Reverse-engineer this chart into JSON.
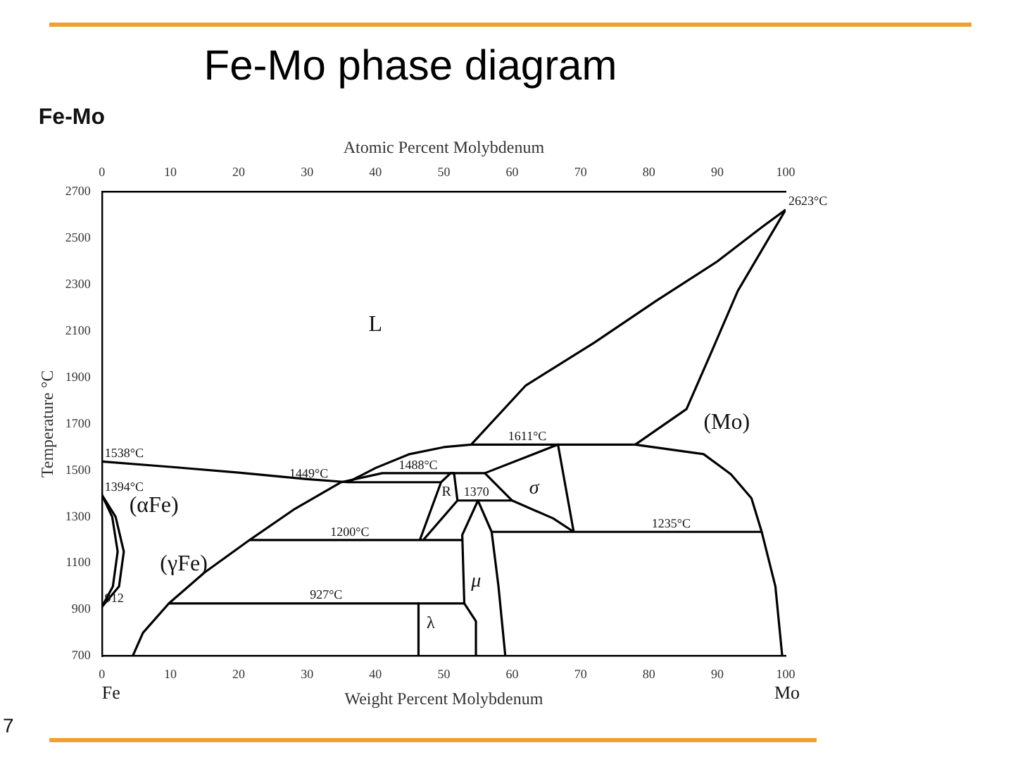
{
  "chart_data": {
    "type": "line",
    "title": "Fe-Mo phase diagram",
    "xlabel": "Weight Percent Molybdenum",
    "x2label": "Atomic Percent Molybdenum",
    "ylabel": "Temperature °C",
    "xlim": [
      0,
      100
    ],
    "xticks": [
      0,
      10,
      20,
      30,
      40,
      50,
      60,
      70,
      80,
      90,
      100
    ],
    "x2lim": [
      0,
      100
    ],
    "x2ticks": [
      0,
      10,
      20,
      30,
      40,
      50,
      60,
      70,
      80,
      90,
      100
    ],
    "ylim": [
      700,
      2700
    ],
    "yticks": [
      700,
      900,
      1100,
      1300,
      1500,
      1700,
      1900,
      2100,
      2300,
      2500,
      2700
    ],
    "grid": false,
    "legend": false,
    "marker": "none",
    "line_style": "solid",
    "series": [
      {
        "color": "#000000",
        "x": [
          0,
          10,
          20,
          30,
          36,
          49.6
        ],
        "values": [
          1538,
          1515,
          1490,
          1462,
          1449,
          1449
        ]
      },
      {
        "color": "#000000",
        "x": [
          4.5,
          6,
          9.8,
          15,
          21.6,
          28,
          35,
          41,
          56,
          60,
          66,
          69
        ],
        "values": [
          700,
          800,
          927,
          1060,
          1200,
          1330,
          1449,
          1488,
          1488,
          1370,
          1293,
          1235
        ]
      },
      {
        "color": "#000000",
        "x": [
          36,
          40,
          45,
          50,
          54,
          62,
          72,
          81,
          90,
          96.5,
          100
        ],
        "values": [
          1449,
          1510,
          1570,
          1600,
          1611,
          1866,
          2050,
          2229,
          2400,
          2547,
          2623
        ]
      },
      {
        "color": "#000000",
        "x": [
          100,
          93,
          89,
          85.5,
          78,
          88,
          92,
          95,
          96.5,
          98.5,
          99.5
        ],
        "values": [
          2623,
          2273,
          2000,
          1764,
          1611,
          1570,
          1483,
          1380,
          1235,
          1000,
          700
        ]
      },
      {
        "color": "#000000",
        "x": [
          54,
          78
        ],
        "values": [
          1611,
          1611
        ]
      },
      {
        "color": "#000000",
        "x": [
          57,
          96.5
        ],
        "values": [
          1235,
          1235
        ]
      },
      {
        "color": "#000000",
        "x": [
          56,
          66.7,
          69
        ],
        "values": [
          1488,
          1611,
          1235
        ]
      },
      {
        "color": "#000000",
        "x": [
          46.5,
          49.6,
          51,
          51.5,
          52,
          47
        ],
        "values": [
          1200,
          1449,
          1488,
          1488,
          1370,
          1200
        ]
      },
      {
        "color": "#000000",
        "x": [
          52,
          60
        ],
        "values": [
          1370,
          1370
        ]
      },
      {
        "color": "#000000",
        "x": [
          54.7,
          54.7,
          53,
          52.7,
          55,
          57,
          58,
          59
        ],
        "values": [
          700,
          850,
          927,
          1222,
          1370,
          1235,
          1000,
          700
        ]
      },
      {
        "color": "#000000",
        "x": [
          21.6,
          52.7
        ],
        "values": [
          1200,
          1200
        ]
      },
      {
        "color": "#000000",
        "x": [
          9.8,
          53
        ],
        "values": [
          927,
          927
        ]
      },
      {
        "color": "#000000",
        "x": [
          46.3,
          46.3
        ],
        "values": [
          927,
          700
        ]
      },
      {
        "color": "#000000",
        "x": [
          0,
          2,
          3.2,
          2.5,
          0
        ],
        "values": [
          1394,
          1300,
          1150,
          1000,
          912
        ]
      },
      {
        "color": "#000000",
        "x": [
          0,
          1.5,
          2.3,
          1.6,
          0
        ],
        "values": [
          1394,
          1300,
          1150,
          1000,
          912
        ]
      }
    ],
    "annotations": [
      "L",
      "(αFe)",
      "(γFe)",
      "(Mo)",
      "σ",
      "R",
      "μ",
      "λ",
      {
        "text": "1538°C",
        "x": 0,
        "y": 1538
      },
      {
        "text": "1394°C",
        "x": 0,
        "y": 1394
      },
      {
        "text": "912",
        "x": 0,
        "y": 912
      },
      {
        "text": "1449°C",
        "x": 27,
        "y": 1449
      },
      {
        "text": "1488°C",
        "x": 43,
        "y": 1488
      },
      {
        "text": "1611°C",
        "x": 59,
        "y": 1611
      },
      {
        "text": "1370",
        "x": 52.5,
        "y": 1370
      },
      {
        "text": "1200°C",
        "x": 33,
        "y": 1200
      },
      {
        "text": "927°C",
        "x": 30,
        "y": 927
      },
      {
        "text": "1235°C",
        "x": 80,
        "y": 1235
      },
      {
        "text": "2623°C",
        "x": 100,
        "y": 2623
      },
      "Fe-Mo",
      "Fe",
      "Mo",
      "7"
    ]
  }
}
